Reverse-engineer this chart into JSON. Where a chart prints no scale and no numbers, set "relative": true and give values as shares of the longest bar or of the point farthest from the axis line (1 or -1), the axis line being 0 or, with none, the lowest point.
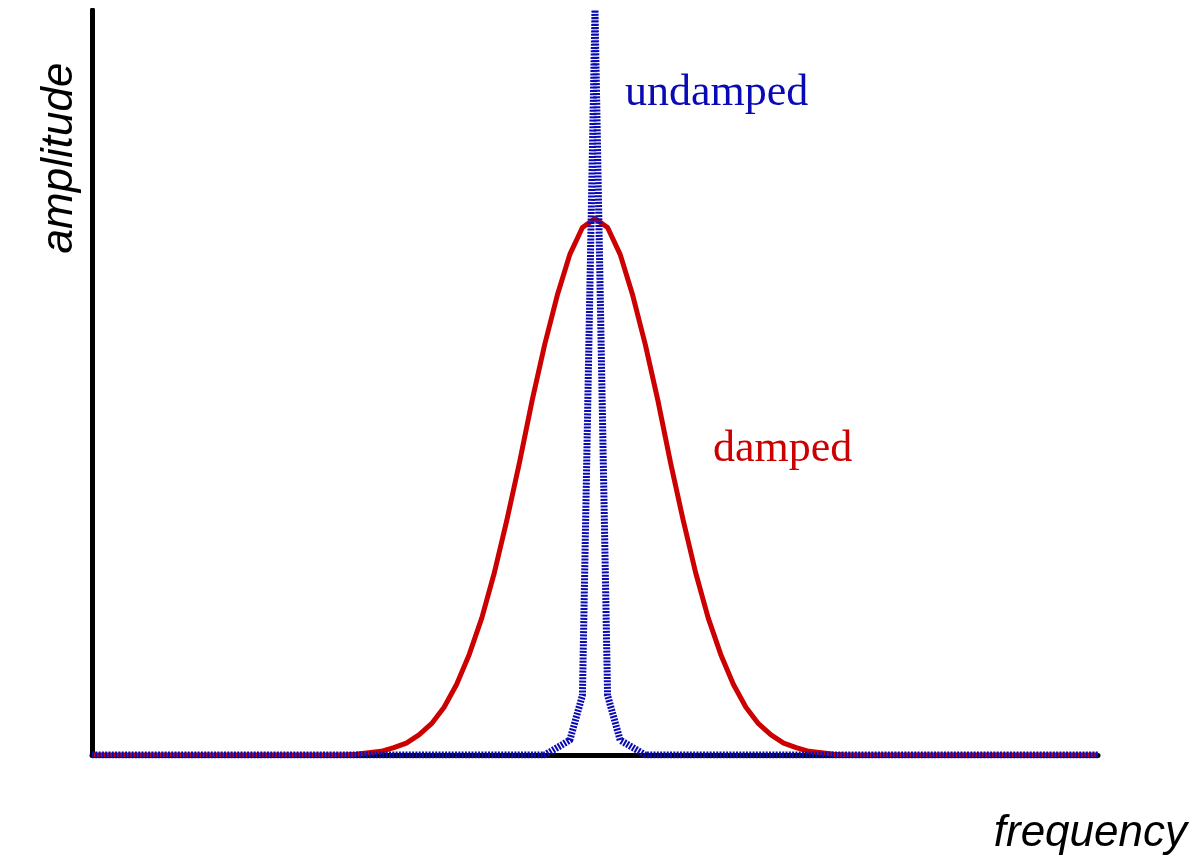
{
  "chart_data": {
    "type": "line",
    "relative": true,
    "xlabel": "frequency",
    "ylabel": "amplitude",
    "categories": [
      null,
      null,
      null,
      null,
      null,
      null,
      null,
      null,
      null,
      null,
      null,
      null,
      null,
      null,
      null,
      null,
      null,
      null,
      null,
      null,
      null,
      null,
      null,
      null,
      null,
      null,
      null,
      null,
      null,
      null,
      null,
      null,
      null,
      null,
      null,
      null,
      null,
      null,
      null,
      null,
      null,
      null,
      null,
      null,
      null,
      null,
      null,
      null,
      null,
      null,
      null,
      null,
      null,
      null,
      null,
      null,
      null,
      null,
      null,
      null,
      null,
      null,
      null,
      null,
      null,
      null,
      null,
      null,
      null,
      null,
      null,
      null,
      null,
      null,
      null,
      null,
      null,
      null,
      null,
      null,
      null
    ],
    "series": [
      {
        "name": "damped",
        "color": "#cc0000",
        "line_style": "solid",
        "values": [
          0,
          0,
          0,
          0,
          0,
          0,
          0,
          0,
          0,
          0,
          0,
          0,
          0,
          0,
          0,
          0,
          0,
          0,
          0,
          0,
          0,
          0.001,
          0.003,
          0.005,
          0.01,
          0.016,
          0.027,
          0.042,
          0.064,
          0.095,
          0.135,
          0.184,
          0.245,
          0.316,
          0.393,
          0.476,
          0.551,
          0.617,
          0.672,
          0.708,
          0.72,
          0.708,
          0.672,
          0.617,
          0.551,
          0.476,
          0.393,
          0.316,
          0.245,
          0.184,
          0.135,
          0.095,
          0.064,
          0.042,
          0.027,
          0.016,
          0.01,
          0.005,
          0.003,
          0.001,
          0,
          0,
          0,
          0,
          0,
          0,
          0,
          0,
          0,
          0,
          0,
          0,
          0,
          0,
          0,
          0,
          0,
          0,
          0,
          0,
          0
        ]
      },
      {
        "name": "undamped",
        "color": "#0a0ab4",
        "line_style": "dashed",
        "values": [
          0,
          0,
          0,
          0,
          0,
          0,
          0,
          0,
          0,
          0,
          0,
          0,
          0,
          0,
          0,
          0,
          0,
          0,
          0,
          0,
          0,
          0,
          0,
          0,
          0,
          0,
          0,
          0,
          0,
          0,
          0,
          0,
          0,
          0,
          0,
          0,
          0,
          0.01,
          0.02,
          0.08,
          1,
          0.08,
          0.02,
          0.01,
          0,
          0,
          0,
          0,
          0,
          0,
          0,
          0,
          0,
          0,
          0,
          0,
          0,
          0,
          0,
          0,
          0,
          0,
          0,
          0,
          0,
          0,
          0,
          0,
          0,
          0,
          0,
          0,
          0,
          0,
          0,
          0,
          0,
          0,
          0,
          0,
          0
        ]
      }
    ],
    "marker": "none"
  }
}
